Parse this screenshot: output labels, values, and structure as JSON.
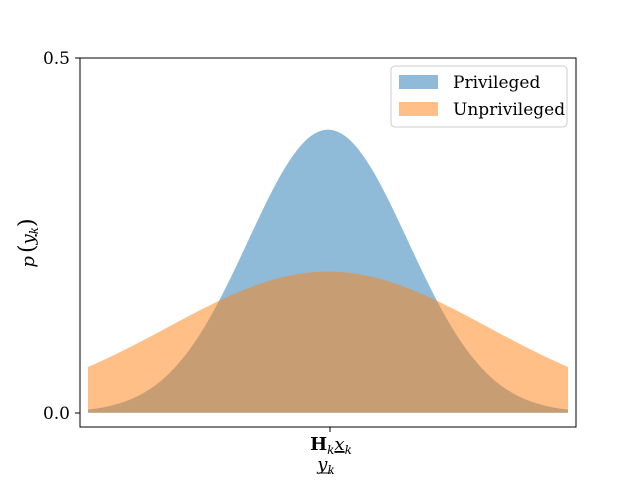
{
  "chart_data": {
    "type": "area",
    "title": "",
    "xlabel": {
      "main_bold": "H",
      "main_sub": "k",
      "main_var": "x",
      "main_var_sub": "k",
      "second_var": "y",
      "second_var_sub": "k"
    },
    "ylabel": {
      "func": "p",
      "var": "y",
      "var_sub": "k"
    },
    "xlim": [
      -3.1,
      3.1
    ],
    "ylim": [
      -0.02,
      0.5
    ],
    "yticks": [
      0.0,
      0.5
    ],
    "ytick_labels": [
      "0.0",
      "0.5"
    ],
    "xtick_center": 0,
    "grid": false,
    "legend_position": "top-right",
    "series": [
      {
        "name": "Privileged",
        "distribution": "normal",
        "mean": 0,
        "std": 1,
        "peak": 0.399,
        "x_range": [
          -3,
          3
        ],
        "color": "#1f77b4",
        "alpha": 0.5
      },
      {
        "name": "Unprivileged",
        "distribution": "normal",
        "mean": 0,
        "std": 2,
        "peak": 0.199,
        "x_range": [
          -3,
          3
        ],
        "color": "#ff7f0e",
        "alpha": 0.5
      }
    ]
  }
}
